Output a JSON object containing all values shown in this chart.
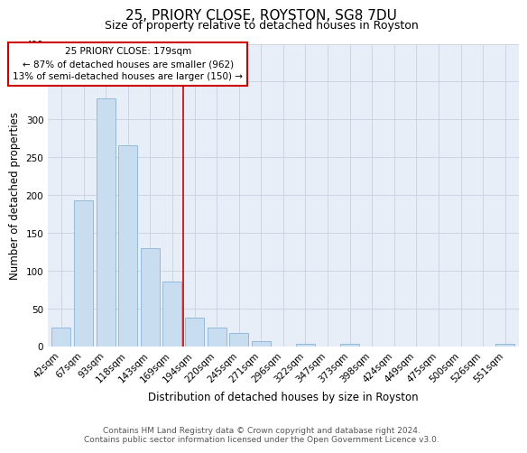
{
  "title": "25, PRIORY CLOSE, ROYSTON, SG8 7DU",
  "subtitle": "Size of property relative to detached houses in Royston",
  "xlabel": "Distribution of detached houses by size in Royston",
  "ylabel": "Number of detached properties",
  "bar_labels": [
    "42sqm",
    "67sqm",
    "93sqm",
    "118sqm",
    "143sqm",
    "169sqm",
    "194sqm",
    "220sqm",
    "245sqm",
    "271sqm",
    "296sqm",
    "322sqm",
    "347sqm",
    "373sqm",
    "398sqm",
    "424sqm",
    "449sqm",
    "475sqm",
    "500sqm",
    "526sqm",
    "551sqm"
  ],
  "bar_heights": [
    25,
    193,
    328,
    266,
    130,
    86,
    38,
    25,
    18,
    7,
    0,
    4,
    0,
    4,
    0,
    0,
    0,
    0,
    0,
    0,
    3
  ],
  "bar_color": "#c8ddf0",
  "bar_edge_color": "#8ab4d4",
  "ylim": [
    0,
    400
  ],
  "yticks": [
    0,
    50,
    100,
    150,
    200,
    250,
    300,
    350,
    400
  ],
  "vline_x_bin": 6.0,
  "vline_color": "#cc0000",
  "annotation_title": "25 PRIORY CLOSE: 179sqm",
  "annotation_line1": "← 87% of detached houses are smaller (962)",
  "annotation_line2": "13% of semi-detached houses are larger (150) →",
  "annotation_box_color": "#ffffff",
  "annotation_box_edge": "#cc0000",
  "footer_line1": "Contains HM Land Registry data © Crown copyright and database right 2024.",
  "footer_line2": "Contains public sector information licensed under the Open Government Licence v3.0.",
  "background_color": "#ffffff",
  "plot_bg_color": "#e8eef8",
  "grid_color": "#c8d0e0",
  "title_fontsize": 11,
  "subtitle_fontsize": 9,
  "axis_label_fontsize": 8.5,
  "tick_fontsize": 7.5,
  "footer_fontsize": 6.5
}
